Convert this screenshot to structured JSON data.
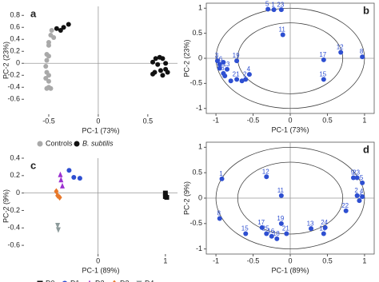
{
  "chart_data": [
    {
      "type": "scatter",
      "panel": "a",
      "xlabel": "PC-1 (73%)",
      "ylabel": "PC-2 (23%)",
      "frame": false,
      "ellipses": false,
      "xlim": [
        -0.75,
        0.8
      ],
      "ylim": [
        -0.85,
        0.95
      ],
      "xticks": [
        -0.5,
        0,
        0.5
      ],
      "yticks": [
        0.8,
        0.6,
        0.4,
        0.2,
        0,
        -0.2,
        -0.4,
        -0.6
      ],
      "series": [
        {
          "name": "Controls",
          "color": "#a9a9a9",
          "marker": "circle",
          "x": [
            -0.47,
            -0.48,
            -0.45,
            -0.5,
            -0.5,
            -0.52,
            -0.5,
            -0.52,
            -0.53,
            -0.52,
            -0.5,
            -0.53,
            -0.5,
            -0.5,
            -0.52,
            -0.48
          ],
          "values": [
            0.55,
            0.47,
            0.43,
            0.35,
            0.3,
            0.15,
            0.12,
            0.05,
            -0.05,
            -0.15,
            -0.2,
            -0.25,
            -0.3,
            -0.4,
            -0.42,
            -0.42
          ]
        },
        {
          "name": "B. subtilis",
          "color": "#111111",
          "marker": "circle",
          "italic": true,
          "x": [
            -0.35,
            -0.42,
            -0.3,
            -0.38,
            0.58,
            0.62,
            0.65,
            0.55,
            0.6,
            0.68,
            0.57,
            0.63,
            0.68,
            0.55,
            0.65,
            0.7
          ],
          "values": [
            0.6,
            0.58,
            0.65,
            0.55,
            0.08,
            0.1,
            0.08,
            0.02,
            -0.02,
            0.0,
            -0.15,
            -0.12,
            -0.1,
            -0.18,
            -0.2,
            -0.15
          ]
        }
      ]
    },
    {
      "type": "scatter",
      "panel": "b",
      "xlabel": "PC-1 (73%)",
      "ylabel": "PC-2 (23%)",
      "frame": true,
      "ellipses": true,
      "xlim": [
        -1.13,
        1.13
      ],
      "ylim": [
        -1.1,
        1.1
      ],
      "xticks": [
        -1,
        -0.5,
        0,
        0.5,
        1
      ],
      "yticks": [
        1,
        0.5,
        0,
        -0.5,
        -1
      ],
      "series": [
        {
          "color": "#2e4fd1",
          "marker": "circle",
          "x": [
            -0.3,
            -0.22,
            -0.12,
            -0.1,
            0.68,
            0.97,
            0.45,
            0.45,
            -0.98,
            -0.72,
            -0.95,
            -0.85,
            -0.9,
            -0.72,
            -0.55,
            -0.6,
            -0.95,
            -0.88,
            -0.8,
            -0.9,
            -0.65
          ],
          "values": [
            0.98,
            0.97,
            0.97,
            0.47,
            0.12,
            0.03,
            -0.03,
            -0.42,
            -0.05,
            -0.05,
            -0.12,
            -0.22,
            -0.3,
            -0.42,
            -0.32,
            -0.42,
            -0.2,
            -0.35,
            -0.45,
            -0.08,
            -0.45
          ],
          "labels": [
            "5",
            "1",
            "23",
            "11",
            "12",
            "8",
            "17",
            "15",
            "3",
            "19",
            "16",
            "13",
            "6",
            "21",
            "4",
            "2",
            null,
            null,
            null,
            null,
            null
          ]
        }
      ]
    },
    {
      "type": "scatter",
      "panel": "c",
      "xlabel": "PC-1 (89%)",
      "ylabel": "PC-2 (9%)",
      "frame": false,
      "ellipses": false,
      "xlim": [
        -1.1,
        1.18
      ],
      "ylim": [
        -0.7,
        0.4
      ],
      "xticks": [
        0,
        1
      ],
      "yticks": [
        0.4,
        0.2,
        0,
        -0.2,
        -0.4,
        -0.6
      ],
      "series": [
        {
          "name": "D0",
          "color": "#111111",
          "marker": "square",
          "x": [
            1.0,
            1.0,
            1.02
          ],
          "values": [
            0.0,
            -0.04,
            -0.05
          ]
        },
        {
          "name": "D1",
          "color": "#2e4fd1",
          "marker": "circle",
          "x": [
            -0.43,
            -0.36,
            -0.27
          ],
          "values": [
            0.26,
            0.18,
            0.17
          ]
        },
        {
          "name": "D2",
          "color": "#9b30d0",
          "marker": "triangle-up",
          "x": [
            -0.56,
            -0.55,
            -0.53
          ],
          "values": [
            0.21,
            0.15,
            0.08
          ]
        },
        {
          "name": "D3",
          "color": "#e8782a",
          "marker": "diamond",
          "x": [
            -0.62,
            -0.6,
            -0.57
          ],
          "values": [
            0.02,
            -0.03,
            -0.05
          ]
        },
        {
          "name": "D4",
          "color": "#8c9a9a",
          "marker": "triangle-down",
          "x": [
            -0.6,
            -0.59
          ],
          "values": [
            -0.37,
            -0.42
          ]
        }
      ]
    },
    {
      "type": "scatter",
      "panel": "d",
      "xlabel": "PC-1 (89%)",
      "ylabel": "PC-2 (9%)",
      "frame": true,
      "ellipses": true,
      "xlim": [
        -1.13,
        1.13
      ],
      "ylim": [
        -1.1,
        1.1
      ],
      "xticks": [
        -1,
        -0.5,
        0,
        0.5,
        1
      ],
      "yticks": [
        1,
        0.5,
        0,
        -0.5,
        -1
      ],
      "series": [
        {
          "color": "#2e4fd1",
          "marker": "circle",
          "x": [
            -0.92,
            -0.32,
            -0.12,
            0.85,
            0.9,
            0.97,
            0.9,
            0.97,
            0.93,
            0.75,
            -0.95,
            -0.12,
            0.28,
            0.47,
            0.45,
            -0.6,
            -0.38,
            -0.32,
            -0.25,
            -0.18,
            -0.05
          ],
          "values": [
            0.38,
            0.42,
            0.05,
            0.4,
            0.4,
            0.3,
            0.05,
            0.03,
            -0.05,
            -0.25,
            -0.4,
            -0.5,
            -0.6,
            -0.58,
            -0.7,
            -0.7,
            -0.58,
            -0.7,
            -0.75,
            -0.8,
            -0.7
          ],
          "labels": [
            "1",
            "12",
            "11",
            "9",
            "23",
            "5",
            "2",
            "4",
            "14",
            "22",
            "8",
            "19",
            "13",
            "24",
            "10",
            "15",
            "17",
            "25",
            "16",
            "18",
            "21"
          ]
        }
      ]
    }
  ]
}
